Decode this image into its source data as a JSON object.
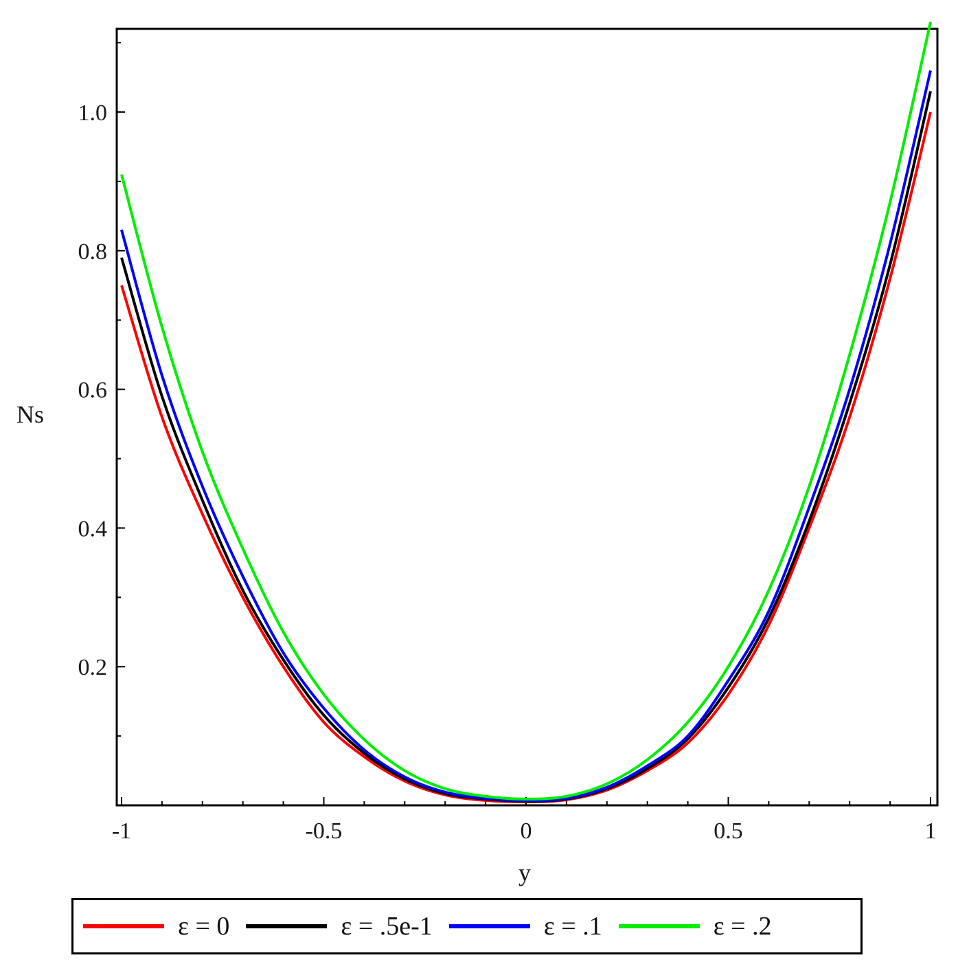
{
  "chart_data": {
    "type": "line",
    "title": "",
    "xlabel": "y",
    "ylabel": "Ns",
    "xlim": [
      -1,
      1
    ],
    "ylim": [
      0.0,
      1.12
    ],
    "x_ticks": [
      {
        "value": -1,
        "label": "-1"
      },
      {
        "value": -0.5,
        "label": "-0.5"
      },
      {
        "value": 0,
        "label": "0"
      },
      {
        "value": 0.5,
        "label": "0.5"
      },
      {
        "value": 1,
        "label": "1"
      }
    ],
    "y_ticks": [
      {
        "value": 0.2,
        "label": "0.2"
      },
      {
        "value": 0.4,
        "label": "0.4"
      },
      {
        "value": 0.6,
        "label": "0.6"
      },
      {
        "value": 0.8,
        "label": "0.8"
      },
      {
        "value": 1.0,
        "label": "1.0"
      }
    ],
    "grid": false,
    "legend_position": "bottom",
    "x": [
      -1.0,
      -0.9,
      -0.8,
      -0.7,
      -0.6,
      -0.5,
      -0.4,
      -0.3,
      -0.2,
      -0.1,
      0.0,
      0.1,
      0.2,
      0.3,
      0.4,
      0.5,
      0.6,
      0.7,
      0.8,
      0.9,
      1.0
    ],
    "series": [
      {
        "name": "ε = 0",
        "color": "#ff0000",
        "values": [
          0.75,
          0.56,
          0.42,
          0.3,
          0.2,
          0.12,
          0.07,
          0.035,
          0.015,
          0.007,
          0.005,
          0.008,
          0.022,
          0.05,
          0.09,
          0.16,
          0.26,
          0.4,
          0.56,
          0.76,
          1.0
        ]
      },
      {
        "name": "ε = .5e-1",
        "color": "#000000",
        "values": [
          0.79,
          0.59,
          0.44,
          0.31,
          0.21,
          0.13,
          0.075,
          0.038,
          0.017,
          0.009,
          0.006,
          0.009,
          0.024,
          0.053,
          0.096,
          0.17,
          0.27,
          0.41,
          0.58,
          0.78,
          1.03
        ]
      },
      {
        "name": "ε = .1",
        "color": "#0000ff",
        "values": [
          0.83,
          0.62,
          0.46,
          0.33,
          0.22,
          0.14,
          0.08,
          0.041,
          0.019,
          0.01,
          0.007,
          0.01,
          0.026,
          0.057,
          0.1,
          0.18,
          0.28,
          0.43,
          0.6,
          0.81,
          1.06
        ]
      },
      {
        "name": "ε = .2",
        "color": "#00ee00",
        "values": [
          0.91,
          0.69,
          0.51,
          0.37,
          0.25,
          0.16,
          0.095,
          0.05,
          0.024,
          0.013,
          0.009,
          0.013,
          0.031,
          0.066,
          0.12,
          0.2,
          0.31,
          0.46,
          0.65,
          0.87,
          1.13
        ]
      }
    ]
  }
}
